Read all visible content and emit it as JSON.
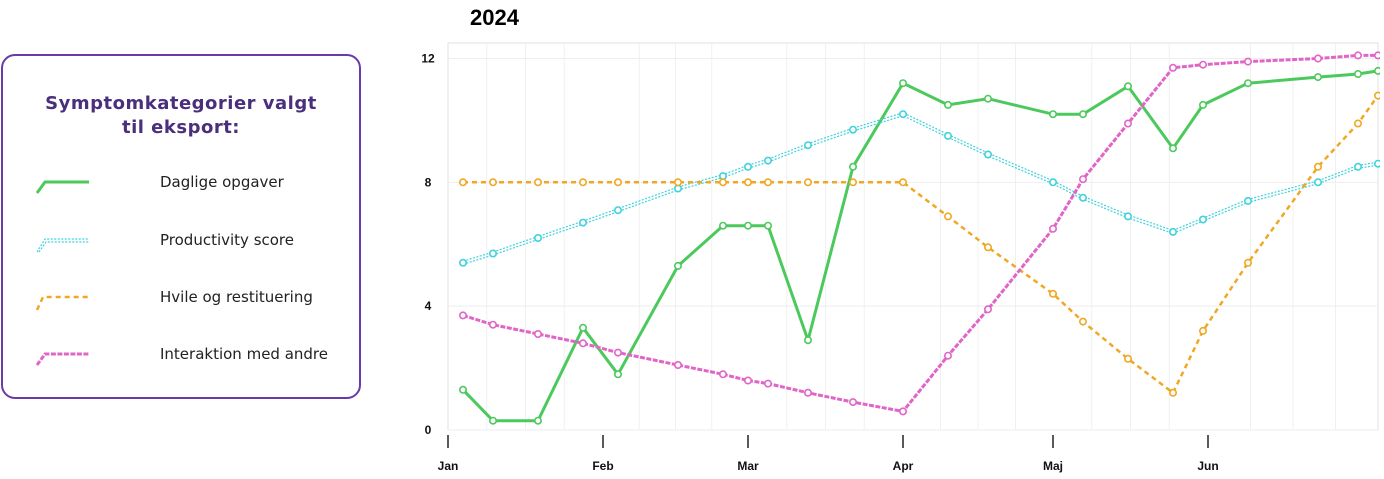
{
  "legend": {
    "title_line1": "Symptomkategorier valgt",
    "title_line2": "til eksport:",
    "items": [
      {
        "label": "Daglige opgaver",
        "color": "#4cc95c",
        "style": "solid"
      },
      {
        "label": "Productivity score",
        "color": "#3fd2dc",
        "style": "double"
      },
      {
        "label": "Hvile og restituering",
        "color": "#f0a824",
        "style": "dashed"
      },
      {
        "label": "Interaktion med andre",
        "color": "#e065c7",
        "style": "dashed"
      }
    ]
  },
  "chart_data": {
    "type": "line",
    "title": "2024",
    "xlabel": "",
    "ylabel": "",
    "x_ticks": [
      {
        "label": "Jan",
        "x": 0
      },
      {
        "label": "Feb",
        "x": 31
      },
      {
        "label": "Mar",
        "x": 60
      },
      {
        "label": "Apr",
        "x": 91
      },
      {
        "label": "Maj",
        "x": 121
      },
      {
        "label": "Jun",
        "x": 152
      }
    ],
    "xlim": [
      0,
      186
    ],
    "ylim": [
      0,
      12.5
    ],
    "y_ticks": [
      0,
      4,
      8,
      12
    ],
    "grid": true,
    "series": [
      {
        "name": "Daglige opgaver",
        "color": "#4cc95c",
        "points": [
          [
            3,
            1.3
          ],
          [
            9,
            0.3
          ],
          [
            18,
            0.3
          ],
          [
            27,
            3.3
          ],
          [
            34,
            1.8
          ],
          [
            46,
            5.3
          ],
          [
            55,
            6.6
          ],
          [
            60,
            6.6
          ],
          [
            64,
            6.6
          ],
          [
            72,
            2.9
          ],
          [
            81,
            8.5
          ],
          [
            91,
            11.2
          ],
          [
            100,
            10.5
          ],
          [
            108,
            10.7
          ],
          [
            121,
            10.2
          ],
          [
            127,
            10.2
          ],
          [
            136,
            11.1
          ],
          [
            145,
            9.1
          ],
          [
            151,
            10.5
          ],
          [
            160,
            11.2
          ],
          [
            174,
            11.4
          ],
          [
            182,
            11.5
          ],
          [
            186,
            11.6
          ]
        ]
      },
      {
        "name": "Productivity score",
        "color": "#3fd2dc",
        "points": [
          [
            3,
            5.4
          ],
          [
            9,
            5.7
          ],
          [
            18,
            6.2
          ],
          [
            27,
            6.7
          ],
          [
            34,
            7.1
          ],
          [
            46,
            7.8
          ],
          [
            55,
            8.2
          ],
          [
            60,
            8.5
          ],
          [
            64,
            8.7
          ],
          [
            72,
            9.2
          ],
          [
            81,
            9.7
          ],
          [
            91,
            10.2
          ],
          [
            100,
            9.5
          ],
          [
            108,
            8.9
          ],
          [
            121,
            8.0
          ],
          [
            127,
            7.5
          ],
          [
            136,
            6.9
          ],
          [
            145,
            6.4
          ],
          [
            151,
            6.8
          ],
          [
            160,
            7.4
          ],
          [
            174,
            8.0
          ],
          [
            182,
            8.5
          ],
          [
            186,
            8.6
          ]
        ]
      },
      {
        "name": "Hvile og restituering",
        "color": "#f0a824",
        "points": [
          [
            3,
            8.0
          ],
          [
            9,
            8.0
          ],
          [
            18,
            8.0
          ],
          [
            27,
            8.0
          ],
          [
            34,
            8.0
          ],
          [
            46,
            8.0
          ],
          [
            55,
            8.0
          ],
          [
            60,
            8.0
          ],
          [
            64,
            8.0
          ],
          [
            72,
            8.0
          ],
          [
            81,
            8.0
          ],
          [
            91,
            8.0
          ],
          [
            100,
            6.9
          ],
          [
            108,
            5.9
          ],
          [
            121,
            4.4
          ],
          [
            127,
            3.5
          ],
          [
            136,
            2.3
          ],
          [
            145,
            1.2
          ],
          [
            151,
            3.2
          ],
          [
            160,
            5.4
          ],
          [
            174,
            8.5
          ],
          [
            182,
            9.9
          ],
          [
            186,
            10.8
          ]
        ]
      },
      {
        "name": "Interaktion med andre",
        "color": "#e065c7",
        "points": [
          [
            3,
            3.7
          ],
          [
            9,
            3.4
          ],
          [
            18,
            3.1
          ],
          [
            27,
            2.8
          ],
          [
            34,
            2.5
          ],
          [
            46,
            2.1
          ],
          [
            55,
            1.8
          ],
          [
            60,
            1.6
          ],
          [
            64,
            1.5
          ],
          [
            72,
            1.2
          ],
          [
            81,
            0.9
          ],
          [
            91,
            0.6
          ],
          [
            100,
            2.4
          ],
          [
            108,
            3.9
          ],
          [
            121,
            6.5
          ],
          [
            127,
            8.1
          ],
          [
            136,
            9.9
          ],
          [
            145,
            11.7
          ],
          [
            151,
            11.8
          ],
          [
            160,
            11.9
          ],
          [
            174,
            12.0
          ],
          [
            182,
            12.1
          ],
          [
            186,
            12.1
          ]
        ]
      }
    ]
  }
}
